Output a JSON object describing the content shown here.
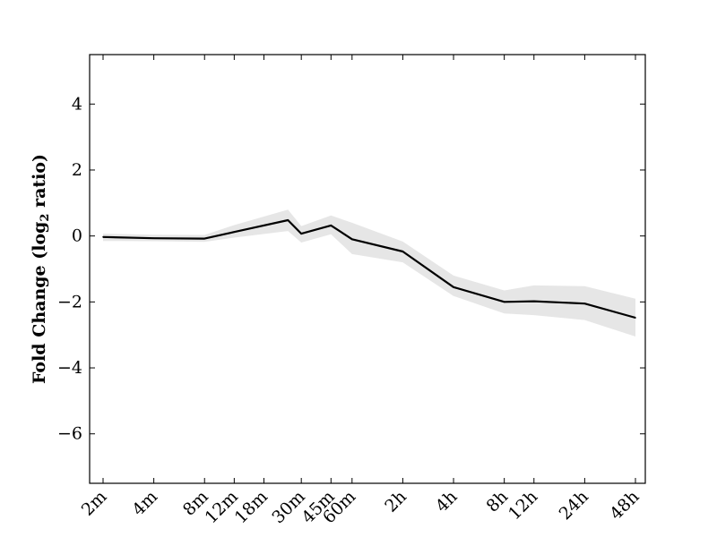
{
  "chart_data": {
    "type": "line",
    "title": "",
    "xlabel": "",
    "ylabel": {
      "prefix": "Fold Change (log",
      "subscript": "2",
      "suffix": " ratio)"
    },
    "ylim": [
      -7.5,
      5.5
    ],
    "yticks": [
      {
        "value": 4,
        "label": "4"
      },
      {
        "value": 2,
        "label": "2"
      },
      {
        "value": 0,
        "label": "0"
      },
      {
        "value": -2,
        "label": "−2"
      },
      {
        "value": -4,
        "label": "−4"
      },
      {
        "value": -6,
        "label": "−6"
      }
    ],
    "xticks": [
      "2m",
      "4m",
      "8m",
      "12m",
      "18m",
      "30m",
      "45m",
      "60m",
      "2h",
      "4h",
      "8h",
      "12h",
      "24h",
      "48h"
    ],
    "x_is_log_time_minutes": true,
    "series": [
      {
        "color": "#000000",
        "band_color": "#e6e6e6",
        "points": [
          {
            "x": "2m",
            "y": -0.03,
            "lower": -0.15,
            "upper": 0.07
          },
          {
            "x": "4m",
            "y": -0.07,
            "lower": -0.16,
            "upper": 0.04
          },
          {
            "x": "8m",
            "y": -0.08,
            "lower": -0.18,
            "upper": 0.03
          },
          {
            "x": "12m",
            "y": 0.12,
            "lower": -0.05,
            "upper": 0.33
          },
          {
            "x": "25m",
            "y": 0.48,
            "lower": 0.15,
            "upper": 0.8
          },
          {
            "x": "30m",
            "y": 0.07,
            "lower": -0.2,
            "upper": 0.3
          },
          {
            "x": "45m",
            "y": 0.32,
            "lower": 0.05,
            "upper": 0.62
          },
          {
            "x": "60m",
            "y": -0.1,
            "lower": -0.55,
            "upper": 0.4
          },
          {
            "x": "2h",
            "y": -0.47,
            "lower": -0.8,
            "upper": -0.17
          },
          {
            "x": "4h",
            "y": -1.55,
            "lower": -1.82,
            "upper": -1.2
          },
          {
            "x": "8h",
            "y": -2.0,
            "lower": -2.35,
            "upper": -1.65
          },
          {
            "x": "12h",
            "y": -1.98,
            "lower": -2.4,
            "upper": -1.5
          },
          {
            "x": "24h",
            "y": -2.05,
            "lower": -2.55,
            "upper": -1.52
          },
          {
            "x": "48h",
            "y": -2.48,
            "lower": -3.05,
            "upper": -1.9
          }
        ]
      }
    ]
  }
}
